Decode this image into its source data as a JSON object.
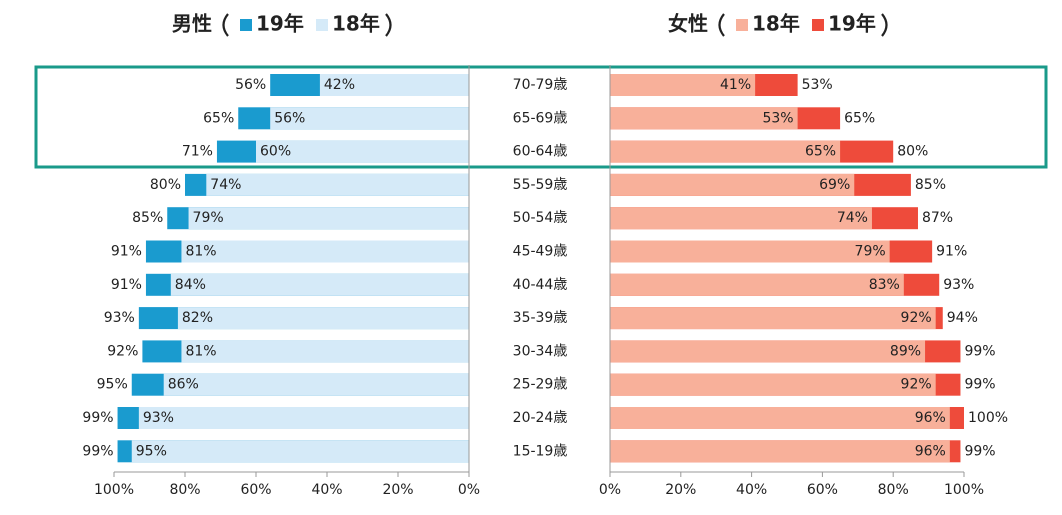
{
  "chart_data": [
    {
      "type": "bar",
      "orientation": "horizontal",
      "title": "男性",
      "series": [
        {
          "name": "19年",
          "color": "#1a9bcf",
          "values": [
            56,
            65,
            71,
            80,
            85,
            91,
            91,
            93,
            92,
            95,
            99,
            99
          ],
          "value_labels": [
            "56%",
            "65%",
            "71%",
            "80%",
            "85%",
            "91%",
            "91%",
            "93%",
            "92%",
            "95%",
            "99%",
            "99%"
          ]
        },
        {
          "name": "18年",
          "color": "#d5eaf8",
          "values": [
            42,
            56,
            60,
            74,
            79,
            81,
            84,
            82,
            81,
            86,
            93,
            95
          ],
          "value_labels": [
            "42%",
            "56%",
            "60%",
            "74%",
            "79%",
            "81%",
            "84%",
            "82%",
            "81%",
            "86%",
            "93%",
            "95%"
          ]
        }
      ],
      "xlim": [
        100,
        0
      ],
      "xticks": [
        {
          "value": 100,
          "label": "100%"
        },
        {
          "value": 80,
          "label": "80%"
        },
        {
          "value": 60,
          "label": "60%"
        },
        {
          "value": 40,
          "label": "40%"
        },
        {
          "value": 20,
          "label": "20%"
        },
        {
          "value": 0,
          "label": "0%"
        }
      ]
    },
    {
      "type": "bar",
      "orientation": "horizontal",
      "title": "女性",
      "categories": [
        "70-79歳",
        "65-69歳",
        "60-64歳",
        "55-59歳",
        "50-54歳",
        "45-49歳",
        "40-44歳",
        "35-39歳",
        "30-34歳",
        "25-29歳",
        "20-24歳",
        "15-19歳"
      ],
      "series": [
        {
          "name": "18年",
          "color": "#f8b09a",
          "values": [
            41,
            53,
            65,
            69,
            74,
            79,
            83,
            92,
            89,
            92,
            96,
            96
          ],
          "value_labels": [
            "41%",
            "53%",
            "65%",
            "69%",
            "74%",
            "79%",
            "83%",
            "92%",
            "89%",
            "92%",
            "96%",
            "96%"
          ]
        },
        {
          "name": "19年",
          "color": "#ee4b3b",
          "values": [
            53,
            65,
            80,
            85,
            87,
            91,
            93,
            94,
            99,
            99,
            100,
            99
          ],
          "value_labels": [
            "53%",
            "65%",
            "80%",
            "85%",
            "87%",
            "91%",
            "93%",
            "94%",
            "99%",
            "99%",
            "100%",
            "99%"
          ]
        }
      ],
      "xlim": [
        0,
        100
      ],
      "xticks": [
        {
          "value": 0,
          "label": "0%"
        },
        {
          "value": 20,
          "label": "20%"
        },
        {
          "value": 40,
          "label": "40%"
        },
        {
          "value": 60,
          "label": "60%"
        },
        {
          "value": 80,
          "label": "80%"
        },
        {
          "value": 100,
          "label": "100%"
        }
      ]
    }
  ]
}
